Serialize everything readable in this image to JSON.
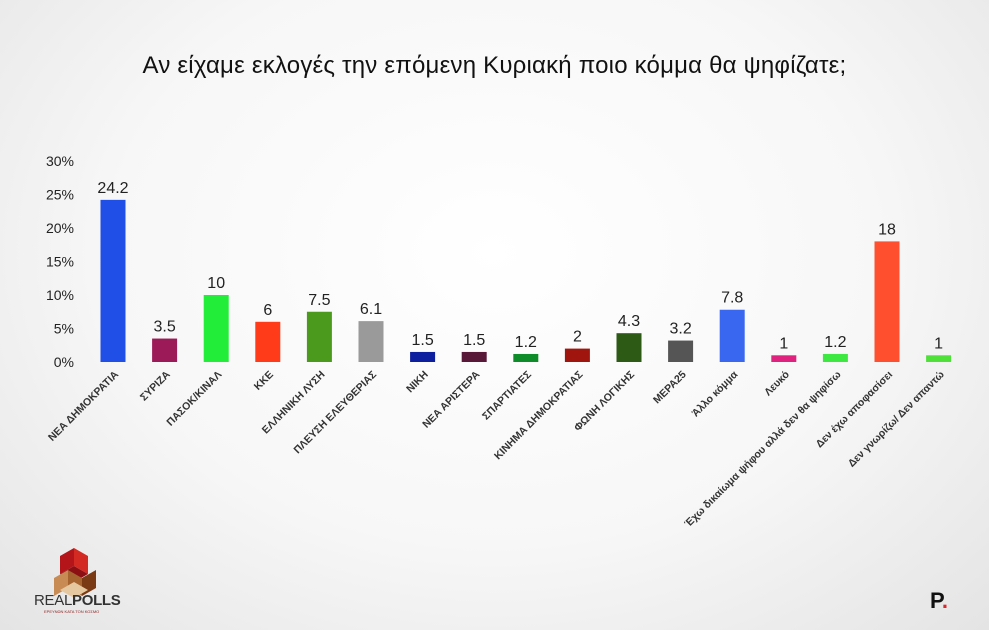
{
  "title": "Αν είχαμε εκλογές την επόμενη Κυριακή ποιο κόμμα θα ψηφίζατε;",
  "chart_data": {
    "type": "bar",
    "title": "Αν είχαμε εκλογές την επόμενη Κυριακή ποιο κόμμα θα ψηφίζατε;",
    "ylim": [
      0,
      30
    ],
    "yticks": [
      "0%",
      "5%",
      "10%",
      "15%",
      "20%",
      "25%",
      "30%"
    ],
    "categories": [
      "ΝΕΑ ΔΗΜΟΚΡΑΤΙΑ",
      "ΣΥΡΙΖΑ",
      "ΠΑΣΟΚ/ΚΙΝΑΛ",
      "ΚΚΕ",
      "ΕΛΛΗΝΙΚΗ ΛΥΣΗ",
      "ΠΛΕΥΣΗ ΕΛΕΥΘΕΡΙΑΣ",
      "ΝΙΚΗ",
      "ΝΕΑ ΑΡΙΣΤΕΡΑ",
      "ΣΠΑΡΤΙΑΤΕΣ",
      "ΚΙΝΗΜΑ ΔΗΜΟΚΡΑΤΙΑΣ",
      "ΦΩΝΗ ΛΟΓΙΚΗΣ",
      "ΜΕΡΑ25",
      "Άλλο κόμμα",
      "Λευκό",
      "Έχω δικαίωμα ψήφου αλλά δεν θα ψηφίσω",
      "Δεν έχω αποφασίσει",
      "Δεν γνωρίζω/ Δεν απαντώ"
    ],
    "values": [
      24.2,
      3.5,
      10,
      6,
      7.5,
      6.1,
      1.5,
      1.5,
      1.2,
      2,
      4.3,
      3.2,
      7.8,
      1,
      1.2,
      18,
      1
    ],
    "value_labels": [
      "24.2",
      "3.5",
      "10",
      "6",
      "7.5",
      "6.1",
      "1.5",
      "1.5",
      "1.2",
      "2",
      "4.3",
      "3.2",
      "7.8",
      "1",
      "1.2",
      "18",
      "1"
    ],
    "colors": [
      "#1f4fe6",
      "#9b1a57",
      "#22ee3a",
      "#ff3b1a",
      "#4b9a1d",
      "#9a9a9a",
      "#0d1f9e",
      "#5a1838",
      "#0f8c2a",
      "#a0150e",
      "#2d5a14",
      "#555555",
      "#3a67f0",
      "#e0227f",
      "#3de840",
      "#ff4f2f",
      "#4fe03a"
    ],
    "grid": false
  },
  "logo": {
    "brand_left": "REAL",
    "brand_right": "POLLS",
    "tagline": "ΕΡΕΥΝΩΝ ΚΑΤΑ ΤΟΝ ΚΟΣΜΟ",
    "publisher": "P",
    "publisher_dot": "."
  }
}
